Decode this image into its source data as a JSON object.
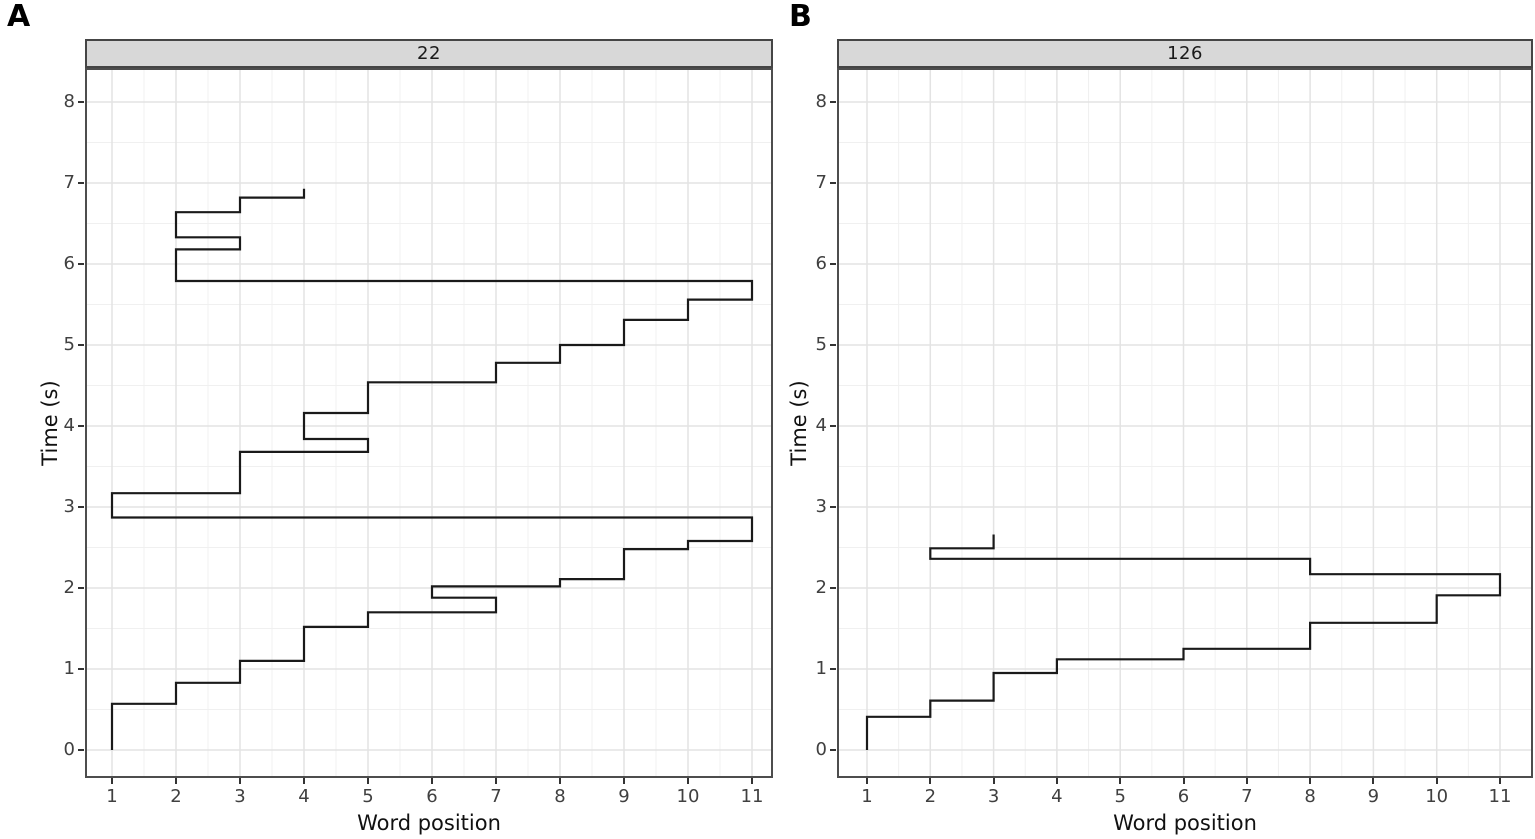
{
  "style": {
    "background": "#ffffff",
    "strip_fill": "#d8d8d8",
    "strip_border": "#454545",
    "panel_border": "#4d4d4d",
    "grid_major": "#e3e3e3",
    "grid_minor": "#f0f0f0",
    "line_color": "#1a1a1a",
    "tick_label_color": "#404040",
    "axis_title_color": "#111111"
  },
  "chart_data": [
    {
      "type": "line",
      "variant": "step-scanpath",
      "panel_letter": "A",
      "strip_label": "22",
      "xlabel": "Word position",
      "ylabel": "Time (s)",
      "x_ticks": [
        1,
        2,
        3,
        4,
        5,
        6,
        7,
        8,
        9,
        10,
        11
      ],
      "y_ticks": [
        0,
        1,
        2,
        3,
        4,
        5,
        6,
        7,
        8
      ],
      "xlim": [
        0.5,
        11.5
      ],
      "ylim": [
        -0.35,
        8.45
      ],
      "grid": "major+minor",
      "legend": "none",
      "vertices_word_time": [
        [
          1,
          0
        ],
        [
          1,
          0.57
        ],
        [
          2,
          0.57
        ],
        [
          2,
          0.83
        ],
        [
          3,
          0.83
        ],
        [
          3,
          1.1
        ],
        [
          4,
          1.1
        ],
        [
          4,
          1.52
        ],
        [
          5,
          1.52
        ],
        [
          5,
          1.7
        ],
        [
          7,
          1.7
        ],
        [
          7,
          1.88
        ],
        [
          6,
          1.88
        ],
        [
          6,
          2.02
        ],
        [
          8,
          2.02
        ],
        [
          8,
          2.11
        ],
        [
          9,
          2.11
        ],
        [
          9,
          2.48
        ],
        [
          10,
          2.48
        ],
        [
          10,
          2.58
        ],
        [
          11,
          2.58
        ],
        [
          11,
          2.87
        ],
        [
          1,
          2.87
        ],
        [
          1,
          3.17
        ],
        [
          3,
          3.17
        ],
        [
          3,
          3.68
        ],
        [
          5,
          3.68
        ],
        [
          5,
          3.84
        ],
        [
          4,
          3.84
        ],
        [
          4,
          4.16
        ],
        [
          5,
          4.16
        ],
        [
          5,
          4.54
        ],
        [
          7,
          4.54
        ],
        [
          7,
          4.78
        ],
        [
          8,
          4.78
        ],
        [
          8,
          5.0
        ],
        [
          9,
          5.0
        ],
        [
          9,
          5.31
        ],
        [
          10,
          5.31
        ],
        [
          10,
          5.56
        ],
        [
          11,
          5.56
        ],
        [
          11,
          5.79
        ],
        [
          2,
          5.79
        ],
        [
          2,
          6.18
        ],
        [
          3,
          6.18
        ],
        [
          3,
          6.33
        ],
        [
          2,
          6.33
        ],
        [
          2,
          6.64
        ],
        [
          3,
          6.64
        ],
        [
          3,
          6.82
        ],
        [
          4,
          6.82
        ],
        [
          4,
          6.93
        ]
      ]
    },
    {
      "type": "line",
      "variant": "step-scanpath",
      "panel_letter": "B",
      "strip_label": "126",
      "xlabel": "Word position",
      "ylabel": "Time (s)",
      "x_ticks": [
        1,
        2,
        3,
        4,
        5,
        6,
        7,
        8,
        9,
        10,
        11
      ],
      "y_ticks": [
        0,
        1,
        2,
        3,
        4,
        5,
        6,
        7,
        8
      ],
      "xlim": [
        0.5,
        11.5
      ],
      "ylim": [
        -0.35,
        8.45
      ],
      "grid": "major+minor",
      "legend": "none",
      "vertices_word_time": [
        [
          1,
          0
        ],
        [
          1,
          0.41
        ],
        [
          2,
          0.41
        ],
        [
          2,
          0.61
        ],
        [
          3,
          0.61
        ],
        [
          3,
          0.95
        ],
        [
          4,
          0.95
        ],
        [
          4,
          1.12
        ],
        [
          6,
          1.12
        ],
        [
          6,
          1.25
        ],
        [
          8,
          1.25
        ],
        [
          8,
          1.57
        ],
        [
          10,
          1.57
        ],
        [
          10,
          1.91
        ],
        [
          11,
          1.91
        ],
        [
          11,
          2.17
        ],
        [
          8,
          2.17
        ],
        [
          8,
          2.36
        ],
        [
          2,
          2.36
        ],
        [
          2,
          2.49
        ],
        [
          3,
          2.49
        ],
        [
          3,
          2.66
        ]
      ]
    }
  ]
}
